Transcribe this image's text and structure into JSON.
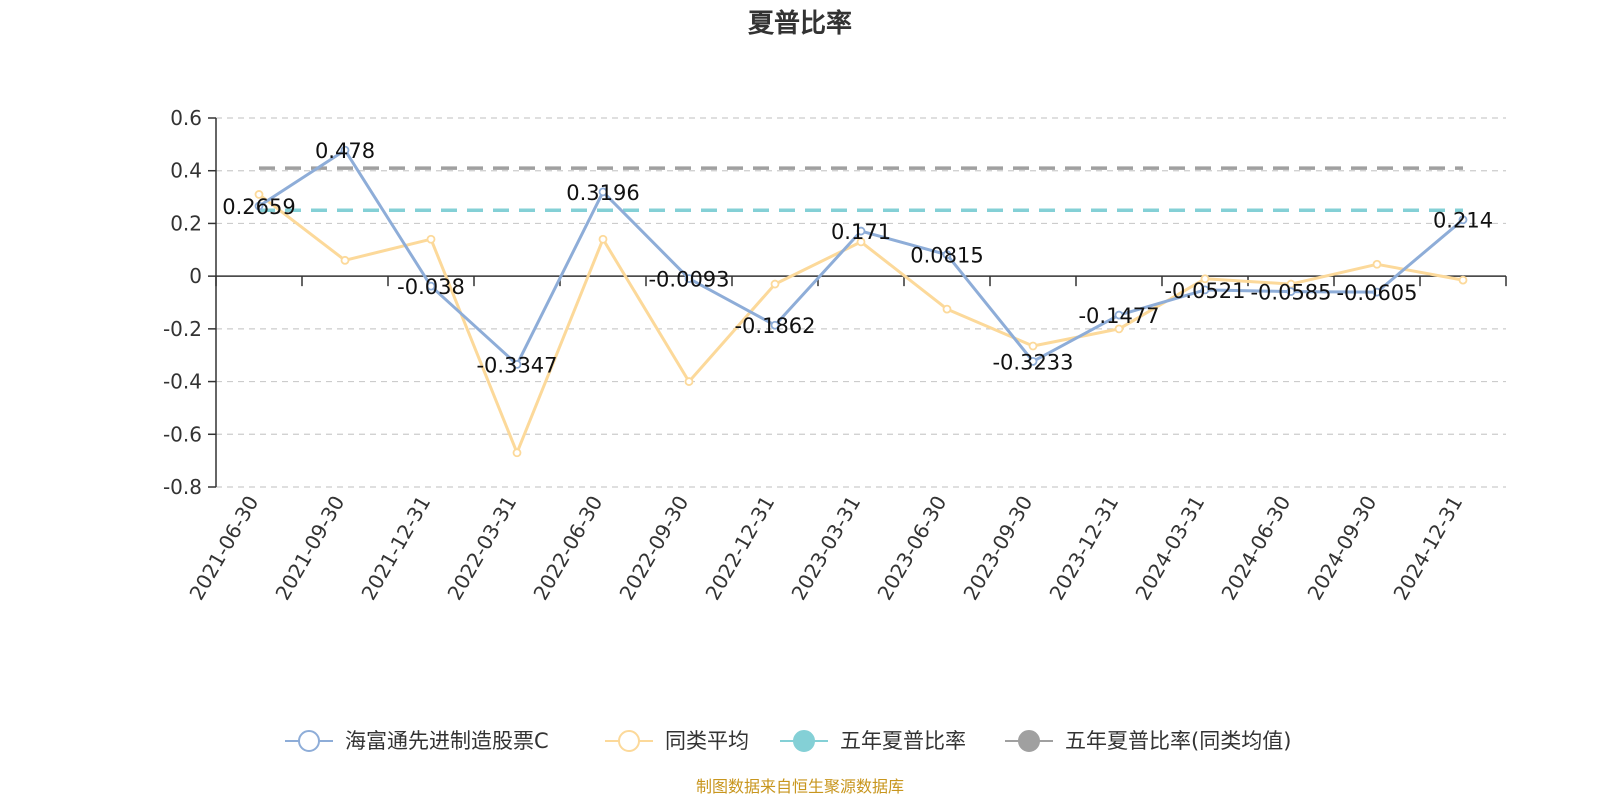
{
  "chart_data": {
    "type": "line",
    "title": "夏普比率",
    "categories": [
      "2021-06-30",
      "2021-09-30",
      "2021-12-31",
      "2022-03-31",
      "2022-06-30",
      "2022-09-30",
      "2022-12-31",
      "2023-03-31",
      "2023-06-30",
      "2023-09-30",
      "2023-12-31",
      "2024-03-31",
      "2024-06-30",
      "2024-09-30",
      "2024-12-31"
    ],
    "ylim": [
      -0.8,
      0.6
    ],
    "yticks": [
      0.6,
      0.4,
      0.2,
      0,
      -0.2,
      -0.4,
      -0.6,
      -0.8
    ],
    "ytick_labels": [
      "0.6",
      "0.4",
      "0.2",
      "0",
      "-0.2",
      "-0.4",
      "-0.6",
      "-0.8"
    ],
    "grid": true,
    "legend_position": "bottom",
    "series": [
      {
        "name": "海富通先进制造股票C",
        "color": "#8eadd8",
        "values": [
          0.2659,
          0.478,
          -0.038,
          -0.3347,
          0.3196,
          -0.0093,
          -0.1862,
          0.171,
          0.0815,
          -0.3233,
          -0.1477,
          -0.0521,
          -0.0585,
          -0.0605,
          0.214
        ],
        "labels": [
          "0.2659",
          "0.478",
          "-0.038",
          "-0.3347",
          "0.3196",
          "-0.0093",
          "-0.1862",
          "0.171",
          "0.0815",
          "-0.3233",
          "-0.1477",
          "-0.0521",
          "-0.0585",
          "-0.0605",
          "0.214"
        ]
      },
      {
        "name": "同类平均",
        "color": "#fcd99a",
        "values": [
          0.31,
          0.06,
          0.14,
          -0.67,
          0.14,
          -0.4,
          -0.03,
          0.13,
          -0.125,
          -0.265,
          -0.2,
          -0.01,
          -0.03,
          0.045,
          -0.015
        ]
      }
    ],
    "reference_lines": [
      {
        "name": "五年夏普比率",
        "color": "#84d0d6",
        "value": 0.25
      },
      {
        "name": "五年夏普比率(同类均值)",
        "color": "#a0a0a0",
        "value": 0.41
      }
    ],
    "source": "制图数据来自恒生聚源数据库"
  }
}
